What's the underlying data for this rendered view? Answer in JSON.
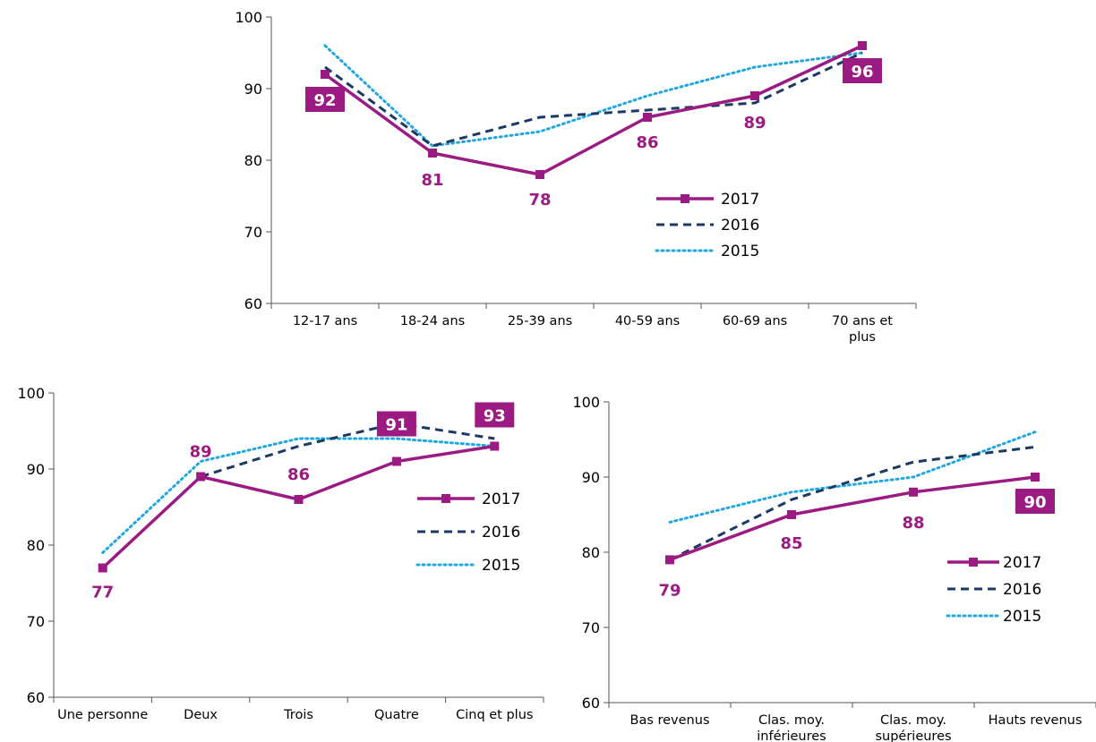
{
  "colors": {
    "s2017": "#9b1b82",
    "s2016": "#1b3a63",
    "s2015": "#20a7e0",
    "label_box_text": "#ffffff",
    "axis": "#555555"
  },
  "chart_data": [
    {
      "type": "line",
      "categories": [
        "12-17 ans",
        "18-24 ans",
        "25-39 ans",
        "40-59 ans",
        "60-69 ans",
        "70 ans et plus"
      ],
      "ylim": [
        60,
        100
      ],
      "yticks": [
        60,
        70,
        80,
        90,
        100
      ],
      "legend_position": "right",
      "series": [
        {
          "name": "2017",
          "values": [
            92,
            81,
            78,
            86,
            89,
            96
          ]
        },
        {
          "name": "2016",
          "values": [
            93,
            82,
            86,
            87,
            88,
            95
          ]
        },
        {
          "name": "2015",
          "values": [
            96,
            82,
            84,
            89,
            93,
            95
          ]
        }
      ],
      "data_labels": [
        "92",
        "81",
        "78",
        "86",
        "89",
        "96"
      ]
    },
    {
      "type": "line",
      "categories": [
        "Une personne",
        "Deux",
        "Trois",
        "Quatre",
        "Cinq et plus"
      ],
      "ylim": [
        60,
        100
      ],
      "yticks": [
        60,
        70,
        80,
        90,
        100
      ],
      "legend_position": "right",
      "series": [
        {
          "name": "2017",
          "values": [
            77,
            89,
            86,
            91,
            93
          ]
        },
        {
          "name": "2016",
          "values": [
            77,
            89,
            93,
            96,
            94
          ]
        },
        {
          "name": "2015",
          "values": [
            79,
            91,
            94,
            94,
            93
          ]
        }
      ],
      "data_labels": [
        "77",
        "89",
        "86",
        "91",
        "93"
      ]
    },
    {
      "type": "line",
      "categories": [
        "Bas revenus",
        "Clas. moy. inférieures",
        "Clas. moy. supérieures",
        "Hauts revenus"
      ],
      "ylim": [
        60,
        100
      ],
      "yticks": [
        60,
        70,
        80,
        90,
        100
      ],
      "legend_position": "right",
      "series": [
        {
          "name": "2017",
          "values": [
            79,
            85,
            88,
            90
          ]
        },
        {
          "name": "2016",
          "values": [
            79,
            87,
            92,
            94
          ]
        },
        {
          "name": "2015",
          "values": [
            84,
            88,
            90,
            96
          ]
        }
      ],
      "data_labels": [
        "79",
        "85",
        "88",
        "90"
      ]
    }
  ]
}
